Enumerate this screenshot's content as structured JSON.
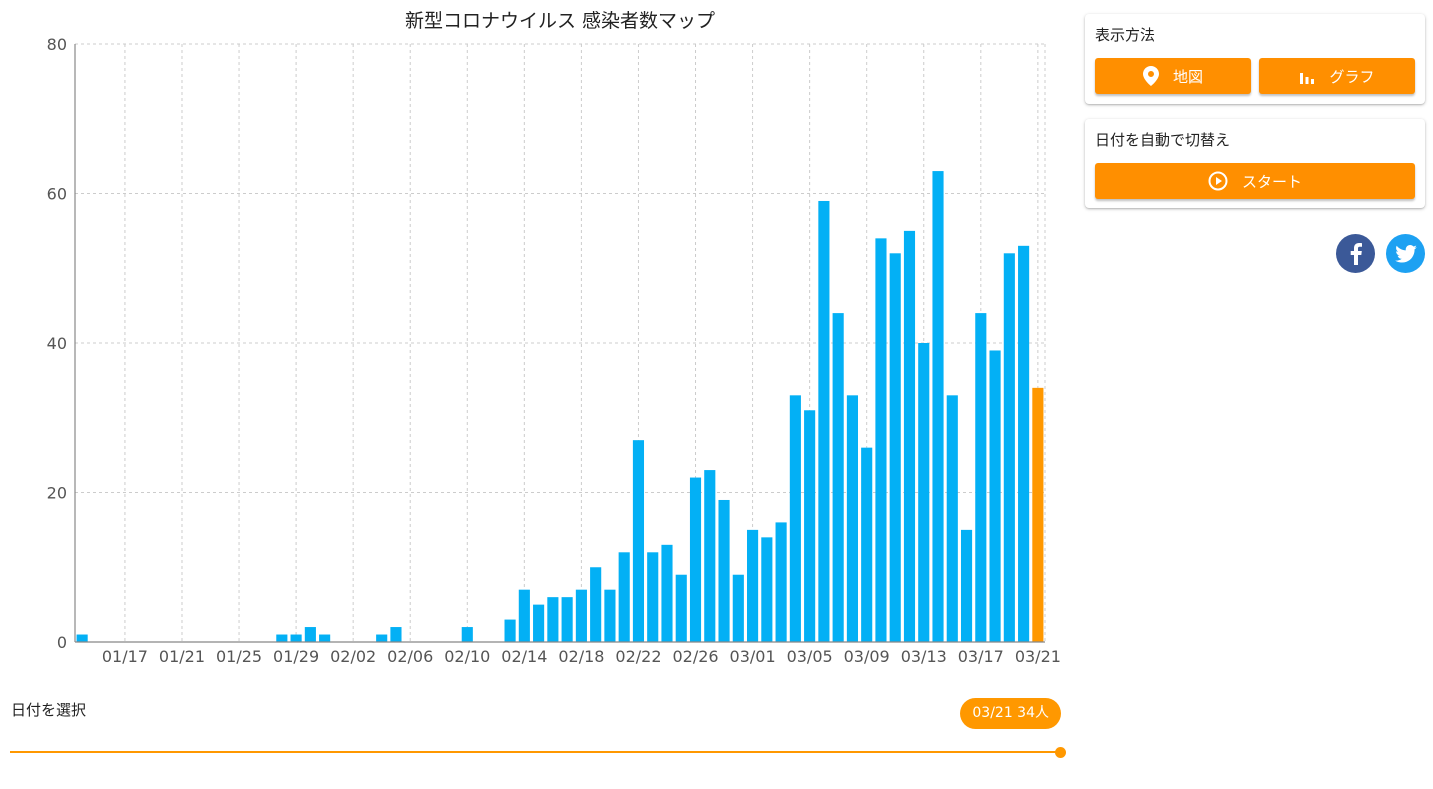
{
  "chart_data": {
    "type": "bar",
    "title": "新型コロナウイルス 感染者数マップ",
    "ylim": [
      0,
      80
    ],
    "yticks": [
      0,
      20,
      40,
      60,
      80
    ],
    "xtick_labels": [
      "01/17",
      "01/21",
      "01/25",
      "01/29",
      "02/02",
      "02/06",
      "02/10",
      "02/14",
      "02/18",
      "02/22",
      "02/26",
      "03/01",
      "03/05",
      "03/09",
      "03/13",
      "03/17",
      "03/21"
    ],
    "xlabel": "",
    "ylabel": "",
    "grid": true,
    "categories": [
      "01/14",
      "01/15",
      "01/16",
      "01/17",
      "01/18",
      "01/19",
      "01/20",
      "01/21",
      "01/22",
      "01/23",
      "01/24",
      "01/25",
      "01/26",
      "01/27",
      "01/28",
      "01/29",
      "01/30",
      "01/31",
      "02/01",
      "02/02",
      "02/03",
      "02/04",
      "02/05",
      "02/06",
      "02/07",
      "02/08",
      "02/09",
      "02/10",
      "02/11",
      "02/12",
      "02/13",
      "02/14",
      "02/15",
      "02/16",
      "02/17",
      "02/18",
      "02/19",
      "02/20",
      "02/21",
      "02/22",
      "02/23",
      "02/24",
      "02/25",
      "02/26",
      "02/27",
      "02/28",
      "02/29",
      "03/01",
      "03/02",
      "03/03",
      "03/04",
      "03/05",
      "03/06",
      "03/07",
      "03/08",
      "03/09",
      "03/10",
      "03/11",
      "03/12",
      "03/13",
      "03/14",
      "03/15",
      "03/16",
      "03/17",
      "03/18",
      "03/19",
      "03/20",
      "03/21"
    ],
    "values": [
      1,
      0,
      0,
      0,
      0,
      0,
      0,
      0,
      0,
      0,
      0,
      0,
      0,
      0,
      1,
      1,
      2,
      1,
      0,
      0,
      0,
      1,
      2,
      0,
      0,
      0,
      0,
      2,
      0,
      0,
      3,
      7,
      5,
      6,
      6,
      7,
      10,
      7,
      12,
      27,
      12,
      13,
      9,
      22,
      23,
      19,
      9,
      15,
      14,
      16,
      33,
      31,
      59,
      44,
      33,
      26,
      54,
      52,
      55,
      40,
      63,
      33,
      15,
      44,
      39,
      52,
      53,
      34
    ],
    "highlight_index": 67,
    "bar_color": "#03b0f5",
    "highlight_color": "#ff9800"
  },
  "slider": {
    "label": "日付を選択",
    "badge": "03/21 34人",
    "position": 1.0
  },
  "display_panel": {
    "title": "表示方法",
    "map_button": "地図",
    "graph_button": "グラフ"
  },
  "auto_panel": {
    "title": "日付を自動で切替え",
    "start_button": "スタート"
  },
  "social": {
    "facebook_color": "#3b5998",
    "twitter_color": "#1da1f2"
  },
  "accent_color": "#ff8f00"
}
